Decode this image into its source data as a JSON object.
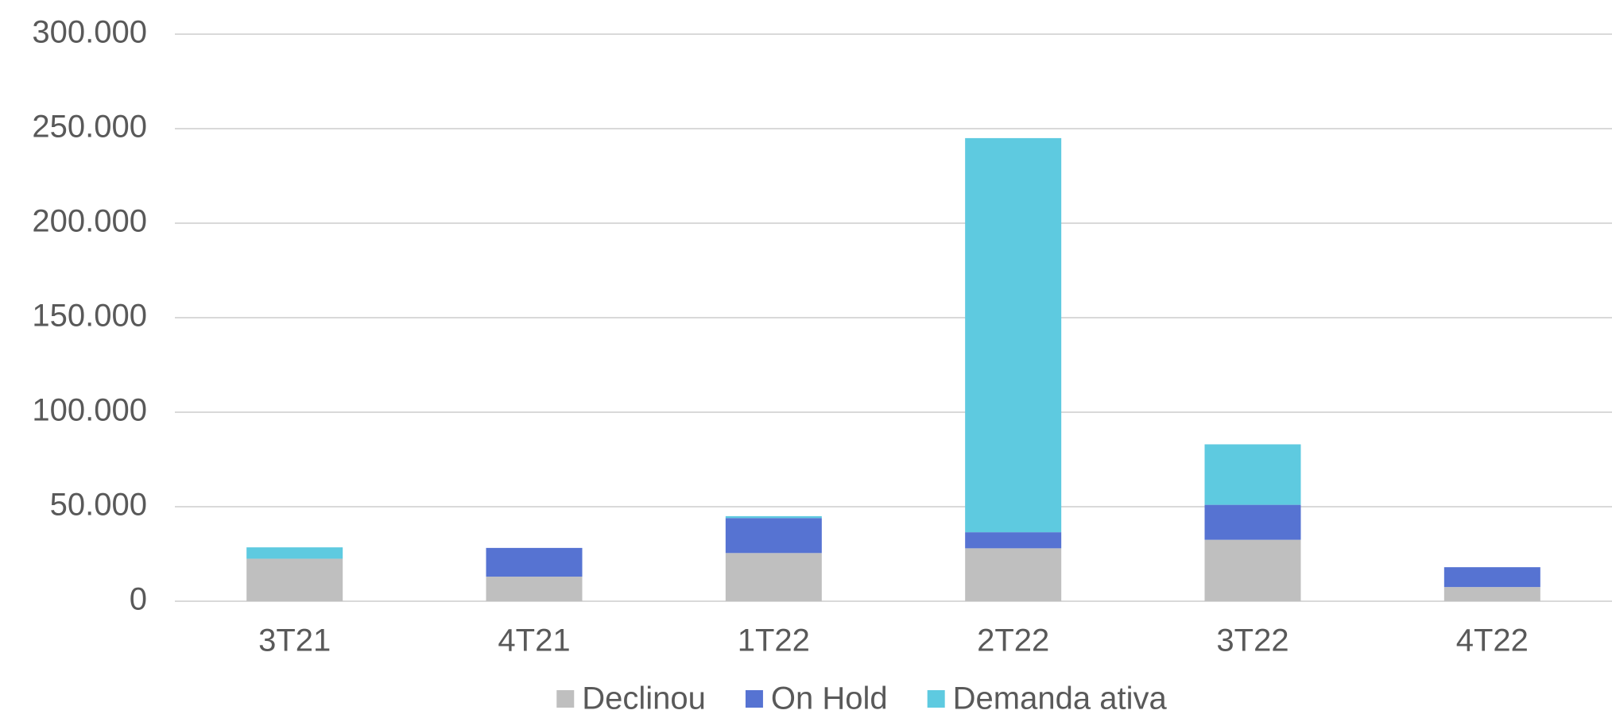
{
  "chart_data": {
    "type": "stacked_bar",
    "categories": [
      "3T21",
      "4T21",
      "1T22",
      "2T22",
      "3T22",
      "4T22"
    ],
    "series": [
      {
        "name": "Declinou",
        "color": "#bfbfbf",
        "values": [
          22500,
          13000,
          25500,
          28000,
          32500,
          7500
        ]
      },
      {
        "name": "On Hold",
        "color": "#5673d2",
        "values": [
          0,
          15200,
          18500,
          8500,
          18500,
          10500
        ]
      },
      {
        "name": "Demanda ativa",
        "color": "#5ecae0",
        "values": [
          6000,
          0,
          1000,
          208500,
          32000,
          0
        ]
      }
    ],
    "ylim": [
      0,
      300000
    ],
    "yticks": [
      0,
      {
        "value": 50000,
        "label": "50.000"
      },
      {
        "value": 100000,
        "label": "100.000"
      },
      {
        "value": 150000,
        "label": "150.000"
      },
      {
        "value": 200000,
        "label": "200.000"
      },
      {
        "value": 250000,
        "label": "250.000"
      },
      {
        "value": 300000,
        "label": "300.000"
      }
    ],
    "grid": true,
    "legend": "bottom"
  }
}
